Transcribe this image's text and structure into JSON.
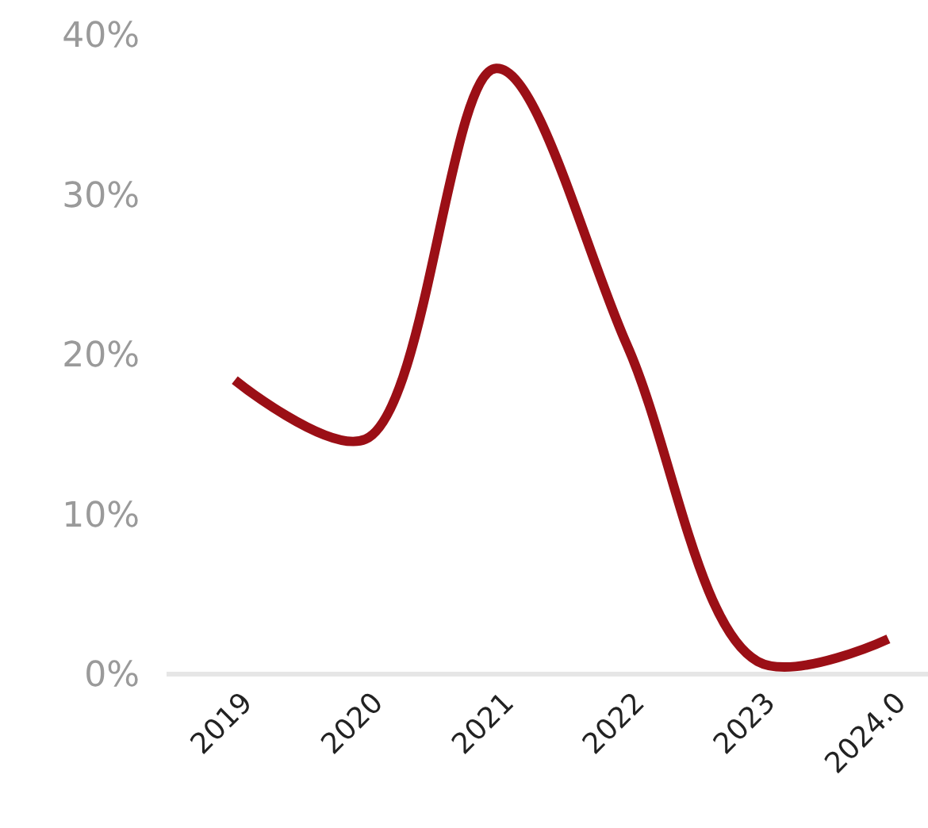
{
  "chart_data": {
    "type": "line",
    "categories": [
      "2019",
      "2020",
      "2021",
      "2022",
      "2023",
      "2024.0"
    ],
    "series": [
      {
        "color": "#9b0f16",
        "values": [
          18.4,
          14.7,
          37.9,
          20.6,
          0.8,
          2.2
        ]
      }
    ],
    "ylim": [
      0,
      40
    ],
    "yticks": [
      {
        "value": 0,
        "label": "0%"
      },
      {
        "value": 10,
        "label": "10%"
      },
      {
        "value": 20,
        "label": "20%"
      },
      {
        "value": 30,
        "label": "30%"
      },
      {
        "value": 40,
        "label": "40%"
      }
    ],
    "grid": false,
    "marker": "none",
    "line_style": "solid"
  }
}
